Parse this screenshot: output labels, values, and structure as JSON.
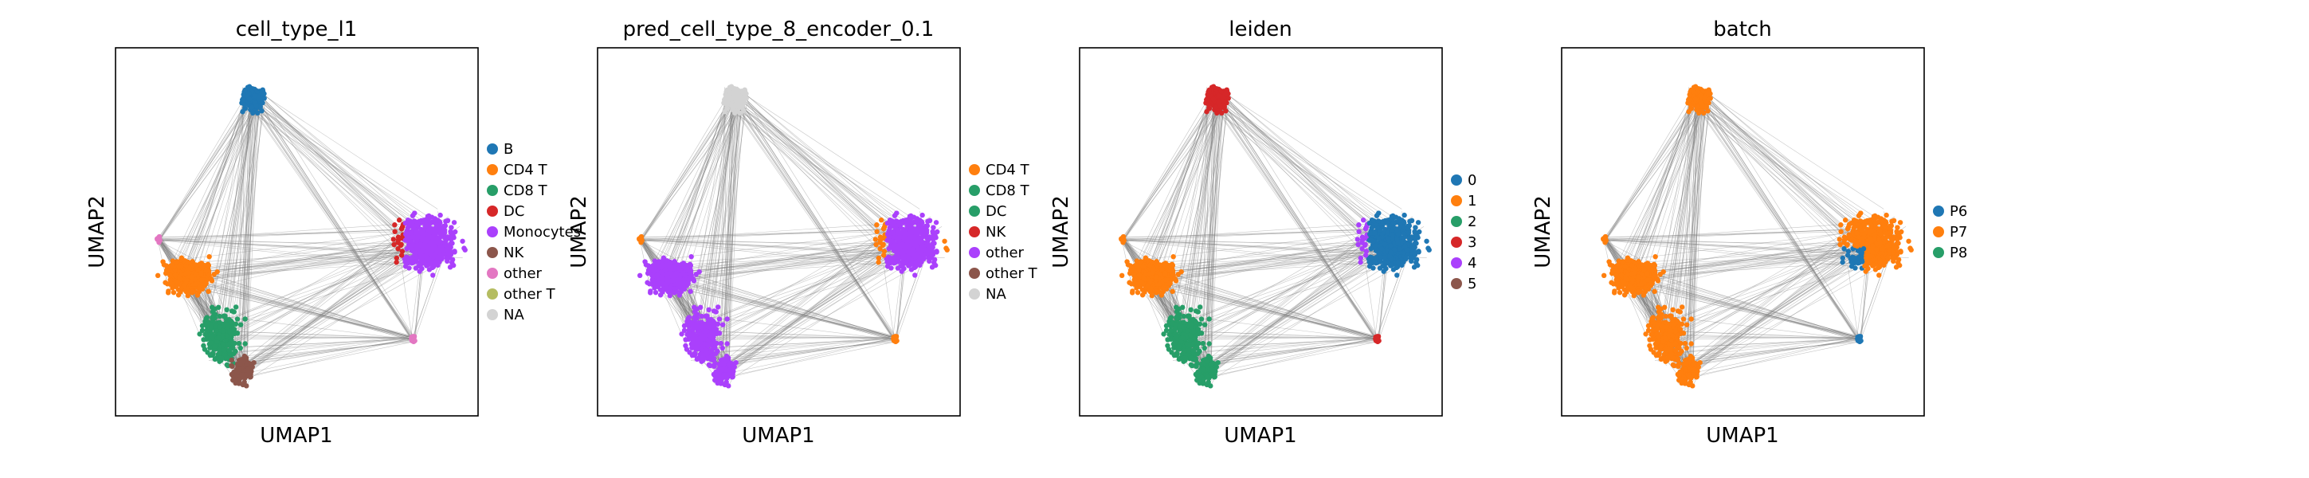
{
  "chart_data": [
    {
      "type": "scatter",
      "title": "cell_type_l1",
      "xlabel": "UMAP1",
      "ylabel": "UMAP2",
      "ticks": "none",
      "legend": [
        "B",
        "CD4 T",
        "CD8 T",
        "DC",
        "Monocytes",
        "NK",
        "other",
        "other T",
        "NA"
      ],
      "legend_placement": "right"
    },
    {
      "type": "scatter",
      "title": "pred_cell_type_8_encoder_0.1",
      "xlabel": "UMAP1",
      "ylabel": "UMAP2",
      "ticks": "none",
      "legend": [
        "CD4 T",
        "CD8 T",
        "DC",
        "NK",
        "other",
        "other T",
        "NA"
      ],
      "legend_placement": "right"
    },
    {
      "type": "scatter",
      "title": "leiden",
      "xlabel": "UMAP1",
      "ylabel": "UMAP2",
      "ticks": "none",
      "legend": [
        "0",
        "1",
        "2",
        "3",
        "4",
        "5"
      ],
      "legend_placement": "right"
    },
    {
      "type": "scatter",
      "title": "batch",
      "xlabel": "UMAP1",
      "ylabel": "UMAP2",
      "ticks": "none",
      "legend": [
        "P6",
        "P7",
        "P8"
      ],
      "legend_placement": "right"
    }
  ],
  "colors": {
    "blue": "#1f77b4",
    "orange": "#ff7f0e",
    "green": "#279e68",
    "red": "#d62728",
    "purple": "#aa40fc",
    "brown": "#8c564b",
    "pink": "#e377c2",
    "olive": "#b5bd61",
    "na": "#d3d3d3",
    "edge": "#808080"
  },
  "legend_colors": [
    [
      "blue",
      "orange",
      "green",
      "red",
      "purple",
      "brown",
      "pink",
      "olive",
      "na"
    ],
    [
      "orange",
      "green",
      "green",
      "red",
      "purple",
      "brown",
      "na"
    ],
    [
      "blue",
      "orange",
      "green",
      "red",
      "purple",
      "brown"
    ],
    [
      "blue",
      "orange",
      "green"
    ]
  ]
}
